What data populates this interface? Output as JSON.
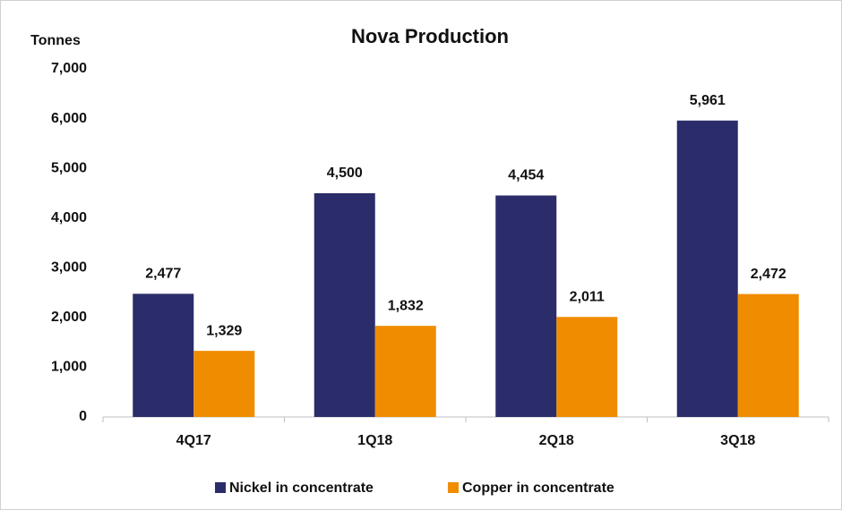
{
  "chart_data": {
    "type": "bar",
    "title": "Nova Production",
    "y_label": "Tonnes",
    "categories": [
      "4Q17",
      "1Q18",
      "2Q18",
      "3Q18"
    ],
    "series": [
      {
        "name": "Nickel in concentrate",
        "color": "#2b2c6a",
        "values": [
          2477,
          4500,
          4454,
          5961
        ],
        "value_labels": [
          "2,477",
          "4,500",
          "4,454",
          "5,961"
        ]
      },
      {
        "name": "Copper in concentrate",
        "color": "#f08c00",
        "values": [
          1329,
          1832,
          2011,
          2472
        ],
        "value_labels": [
          "1,329",
          "1,832",
          "2,011",
          "2,472"
        ]
      }
    ],
    "ylim": [
      0,
      7000
    ],
    "yticks": [
      0,
      {
        "value": 1000,
        "label": "1,000"
      },
      {
        "value": 2000,
        "label": "2,000"
      },
      {
        "value": 3000,
        "label": "3,000"
      },
      {
        "value": 4000,
        "label": "4,000"
      },
      {
        "value": 5000,
        "label": "5,000"
      },
      {
        "value": 6000,
        "label": "6,000"
      },
      {
        "value": 7000,
        "label": "7,000"
      }
    ],
    "grid": false,
    "legend": "bottom"
  }
}
